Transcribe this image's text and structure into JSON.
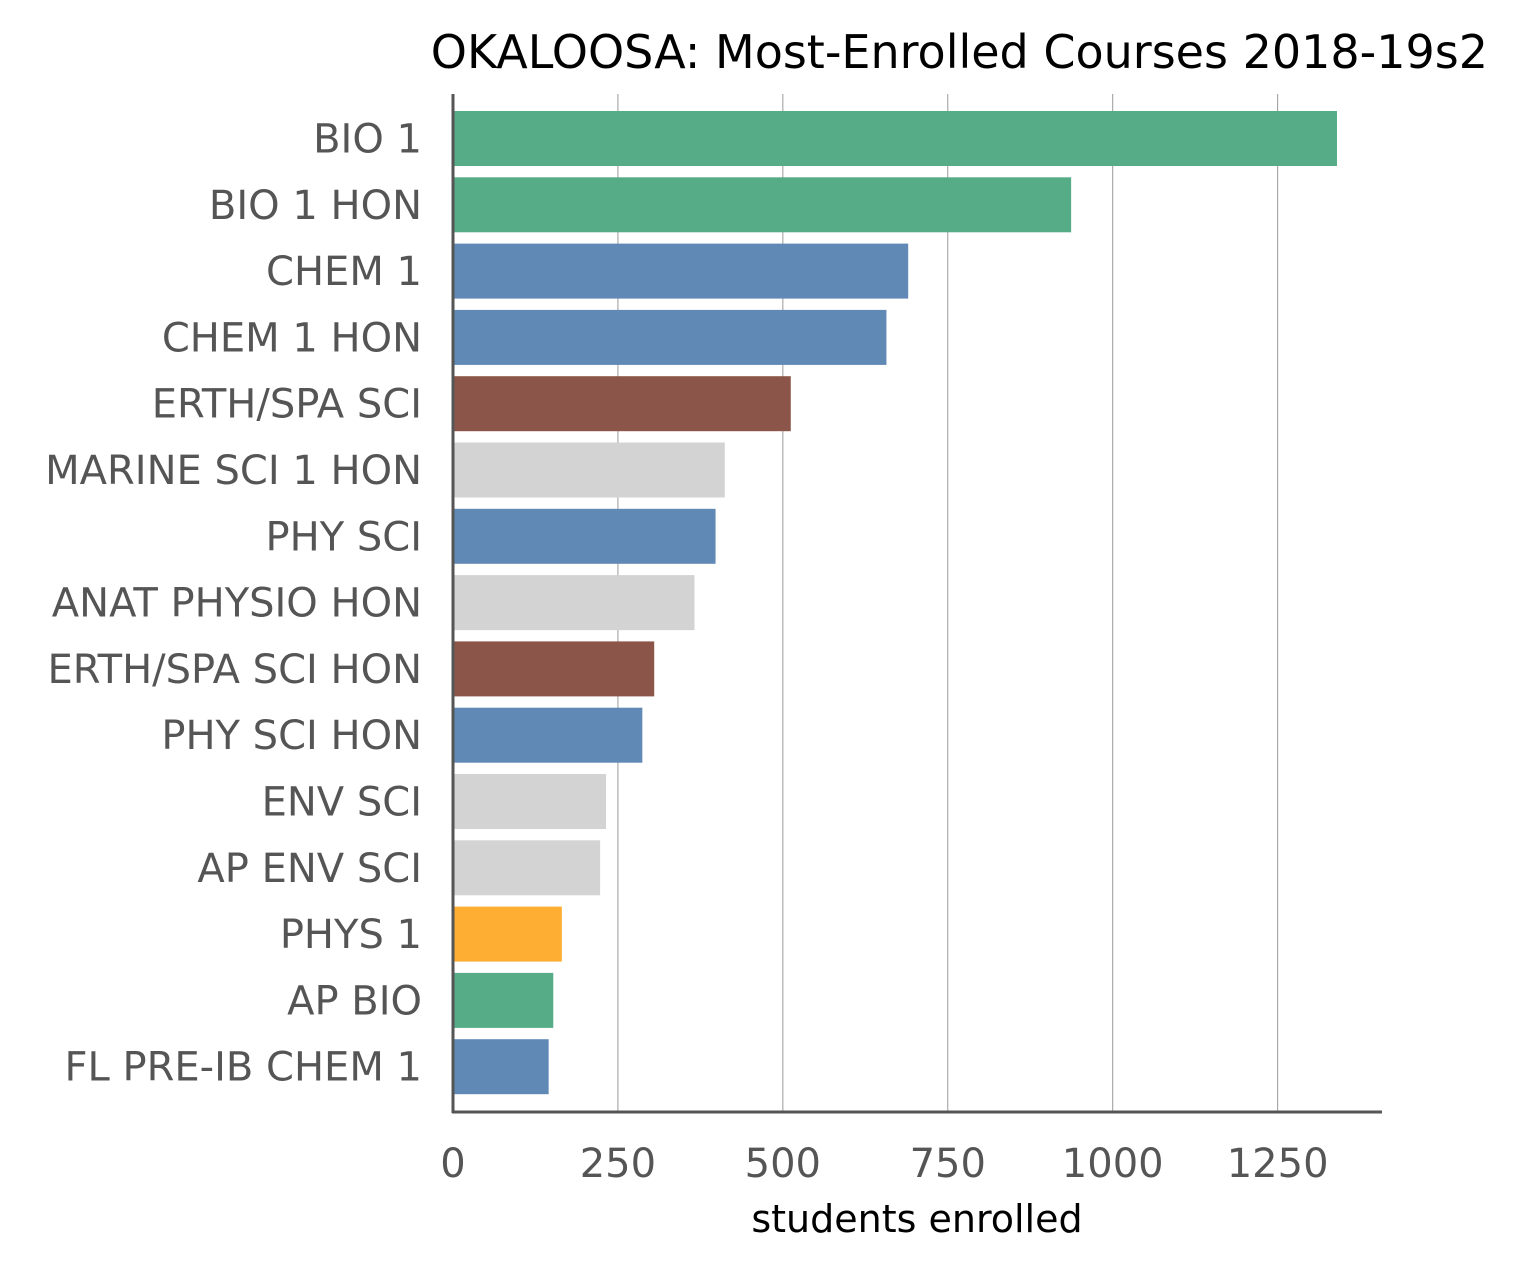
{
  "chart_data": {
    "type": "bar",
    "orientation": "horizontal",
    "title": "OKALOOSA: Most-Enrolled Courses 2018-19s2",
    "xlabel": "students enrolled",
    "ylabel": "",
    "xlim": [
      0,
      1410
    ],
    "xticks": [
      0,
      250,
      500,
      750,
      1000,
      1250
    ],
    "xtick_labels": [
      "0",
      "250",
      "500",
      "750",
      "1000",
      "1250"
    ],
    "grid": "vertical",
    "legend": "none",
    "categories": [
      "BIO 1",
      "BIO 1 HON",
      "CHEM 1",
      "CHEM 1 HON",
      "ERTH/SPA SCI",
      "MARINE SCI 1 HON",
      "PHY SCI",
      "ANAT PHYSIO HON",
      "ERTH/SPA SCI HON",
      "PHY SCI HON",
      "ENV SCI",
      "AP ENV SCI",
      "PHYS 1",
      "AP BIO",
      "FL PRE-IB CHEM 1"
    ],
    "values": [
      1340,
      937,
      690,
      657,
      512,
      412,
      398,
      366,
      305,
      287,
      232,
      223,
      165,
      152,
      145
    ],
    "colors": [
      "#55AC87",
      "#55AC87",
      "#6189B5",
      "#6189B5",
      "#8B5649",
      "#D3D3D3",
      "#6189B5",
      "#D3D3D3",
      "#8B5649",
      "#6189B5",
      "#D3D3D3",
      "#D3D3D3",
      "#FFAE34",
      "#55AC87",
      "#6189B5"
    ]
  }
}
